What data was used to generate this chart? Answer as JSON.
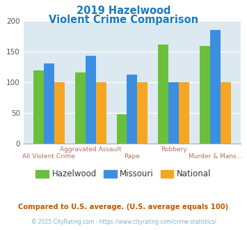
{
  "title_line1": "2019 Hazelwood",
  "title_line2": "Violent Crime Comparison",
  "title_color": "#1a7abf",
  "hazelwood": [
    119,
    116,
    48,
    161,
    159
  ],
  "missouri": [
    130,
    143,
    112,
    100,
    185
  ],
  "national": [
    100,
    100,
    100,
    100,
    100
  ],
  "colors": {
    "hazelwood": "#6abf3c",
    "missouri": "#3c8fe0",
    "national": "#f5a623"
  },
  "ylim": [
    0,
    200
  ],
  "yticks": [
    0,
    50,
    100,
    150,
    200
  ],
  "plot_bg": "#dce9f0",
  "legend_labels": [
    "Hazelwood",
    "Missouri",
    "National"
  ],
  "xlabel_top": [
    "",
    "Aggravated Assault",
    "",
    "Robbery",
    ""
  ],
  "xlabel_bot": [
    "All Violent Crime",
    "",
    "Rape",
    "",
    "Murder & Mans..."
  ],
  "footnote1": "Compared to U.S. average. (U.S. average equals 100)",
  "footnote2": "© 2025 CityRating.com - https://www.cityrating.com/crime-statistics/",
  "footnote1_color": "#c05800",
  "footnote2_color": "#7ab0c8",
  "xlabel_color": "#b07060",
  "n": 5,
  "bar_width": 0.25
}
